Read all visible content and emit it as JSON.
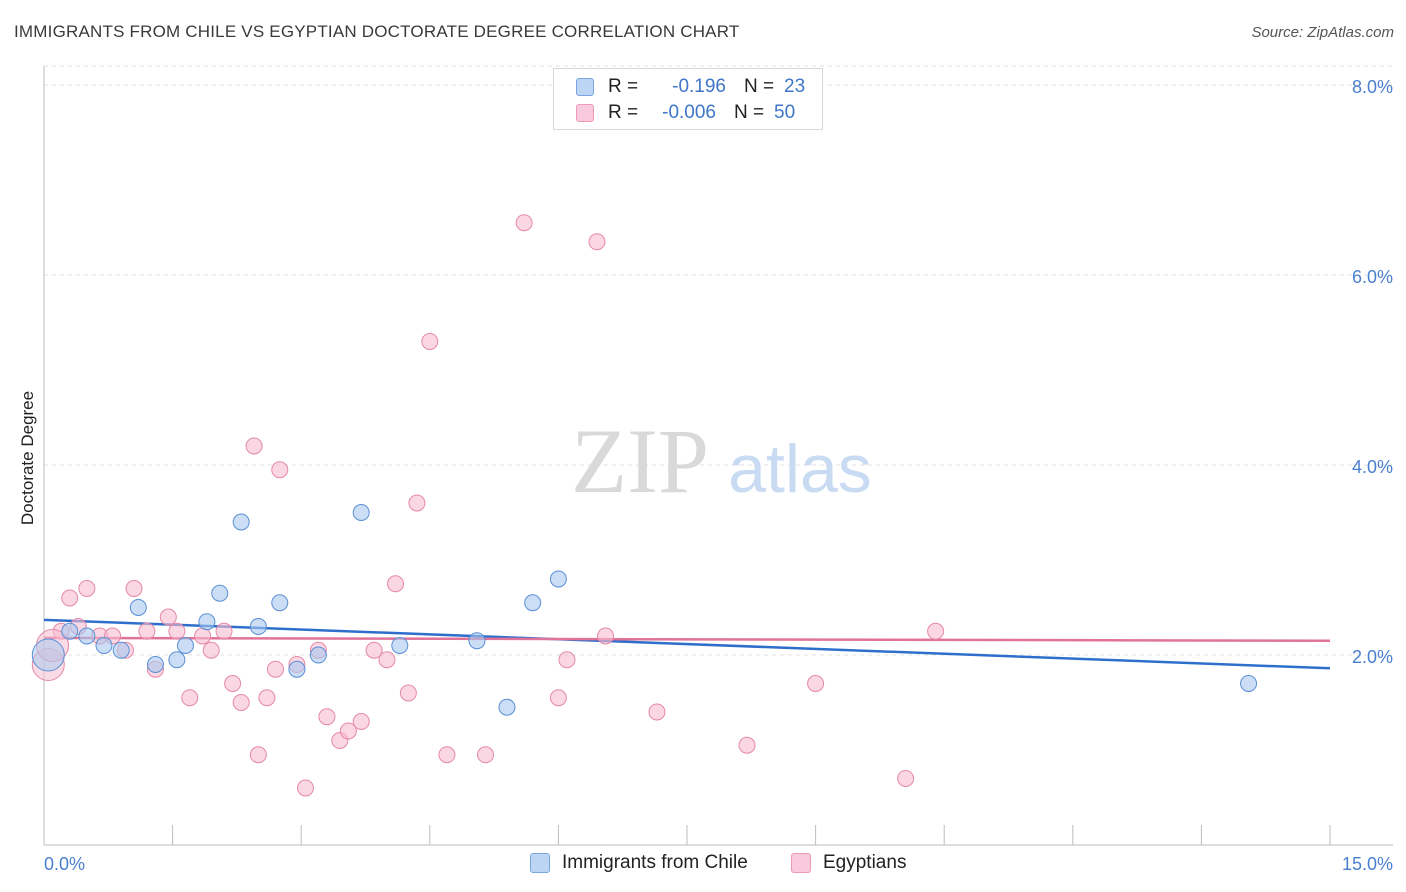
{
  "title": "IMMIGRANTS FROM CHILE VS EGYPTIAN DOCTORATE DEGREE CORRELATION CHART",
  "source": "Source: ZipAtlas.com",
  "watermark": {
    "zip": "ZIP",
    "atlas": "atlas"
  },
  "legend": {
    "rows": [
      {
        "r_label": "R =",
        "r_value": "-0.196",
        "n_label": "N =",
        "n_value": "23"
      },
      {
        "r_label": "R =",
        "r_value": "-0.006",
        "n_label": "N =",
        "n_value": "50"
      }
    ]
  },
  "x_axis": {
    "min_label": "0.0%",
    "max_label": "15.0%"
  },
  "chart_data": {
    "type": "scatter",
    "title": "IMMIGRANTS FROM CHILE VS EGYPTIAN DOCTORATE DEGREE CORRELATION CHART",
    "xlabel": "",
    "ylabel": "Doctorate Degree",
    "xlim": [
      0,
      15
    ],
    "ylim": [
      0,
      8.2
    ],
    "y_ticks": [
      {
        "value": 2,
        "label": "2.0%"
      },
      {
        "value": 4,
        "label": "4.0%"
      },
      {
        "value": 6,
        "label": "6.0%"
      },
      {
        "value": 8,
        "label": "8.0%"
      }
    ],
    "x_ticks": [
      0,
      1.5,
      3,
      4.5,
      6,
      7.5,
      9,
      10.5,
      12,
      13.5,
      15
    ],
    "grid": true,
    "legend_position": "top-center",
    "series": [
      {
        "name": "Immigrants from Chile",
        "color": "#a9c8ef",
        "stroke": "#5a8fd6",
        "trend_color": "#2f6fcc",
        "trend": [
          [
            0,
            2.37
          ],
          [
            15,
            1.86
          ]
        ],
        "points": [
          [
            0.05,
            2.0
          ],
          [
            0.3,
            2.25
          ],
          [
            0.5,
            2.2
          ],
          [
            0.7,
            2.1
          ],
          [
            0.9,
            2.05
          ],
          [
            1.1,
            2.5
          ],
          [
            1.3,
            1.9
          ],
          [
            1.55,
            1.95
          ],
          [
            1.65,
            2.1
          ],
          [
            1.9,
            2.35
          ],
          [
            2.05,
            2.65
          ],
          [
            2.3,
            3.4
          ],
          [
            2.5,
            2.3
          ],
          [
            2.75,
            2.55
          ],
          [
            2.95,
            1.85
          ],
          [
            3.2,
            2.0
          ],
          [
            3.7,
            3.5
          ],
          [
            4.15,
            2.1
          ],
          [
            5.05,
            2.15
          ],
          [
            5.4,
            1.45
          ],
          [
            5.7,
            2.55
          ],
          [
            6.0,
            2.8
          ],
          [
            14.05,
            1.7
          ]
        ]
      },
      {
        "name": "Egyptians",
        "color": "#f7bdd0",
        "stroke": "#e589a8",
        "trend_color": "#e0739a",
        "trend": [
          [
            0,
            2.18
          ],
          [
            15,
            2.15
          ]
        ],
        "points": [
          [
            0.05,
            1.9
          ],
          [
            0.2,
            2.25
          ],
          [
            0.3,
            2.6
          ],
          [
            0.4,
            2.3
          ],
          [
            0.5,
            2.7
          ],
          [
            0.65,
            2.2
          ],
          [
            0.8,
            2.2
          ],
          [
            0.95,
            2.05
          ],
          [
            1.05,
            2.7
          ],
          [
            1.2,
            2.25
          ],
          [
            1.3,
            1.85
          ],
          [
            1.45,
            2.4
          ],
          [
            1.55,
            2.25
          ],
          [
            1.7,
            1.55
          ],
          [
            1.85,
            2.2
          ],
          [
            1.95,
            2.05
          ],
          [
            2.1,
            2.25
          ],
          [
            2.2,
            1.7
          ],
          [
            2.3,
            1.5
          ],
          [
            2.45,
            4.2
          ],
          [
            2.5,
            0.95
          ],
          [
            2.6,
            1.55
          ],
          [
            2.7,
            1.85
          ],
          [
            2.75,
            3.95
          ],
          [
            2.95,
            1.9
          ],
          [
            3.05,
            0.6
          ],
          [
            3.2,
            2.05
          ],
          [
            3.3,
            1.35
          ],
          [
            3.45,
            1.1
          ],
          [
            3.55,
            1.2
          ],
          [
            3.7,
            1.3
          ],
          [
            3.85,
            2.05
          ],
          [
            4.0,
            1.95
          ],
          [
            4.1,
            2.75
          ],
          [
            4.25,
            1.6
          ],
          [
            4.35,
            3.6
          ],
          [
            4.5,
            5.3
          ],
          [
            4.7,
            0.95
          ],
          [
            5.15,
            0.95
          ],
          [
            5.6,
            6.55
          ],
          [
            6.0,
            1.55
          ],
          [
            6.1,
            1.95
          ],
          [
            6.45,
            6.35
          ],
          [
            6.55,
            2.2
          ],
          [
            7.15,
            1.4
          ],
          [
            8.2,
            1.05
          ],
          [
            9.0,
            1.7
          ],
          [
            10.05,
            0.7
          ],
          [
            10.4,
            2.25
          ],
          [
            0.1,
            2.1
          ]
        ]
      }
    ]
  }
}
